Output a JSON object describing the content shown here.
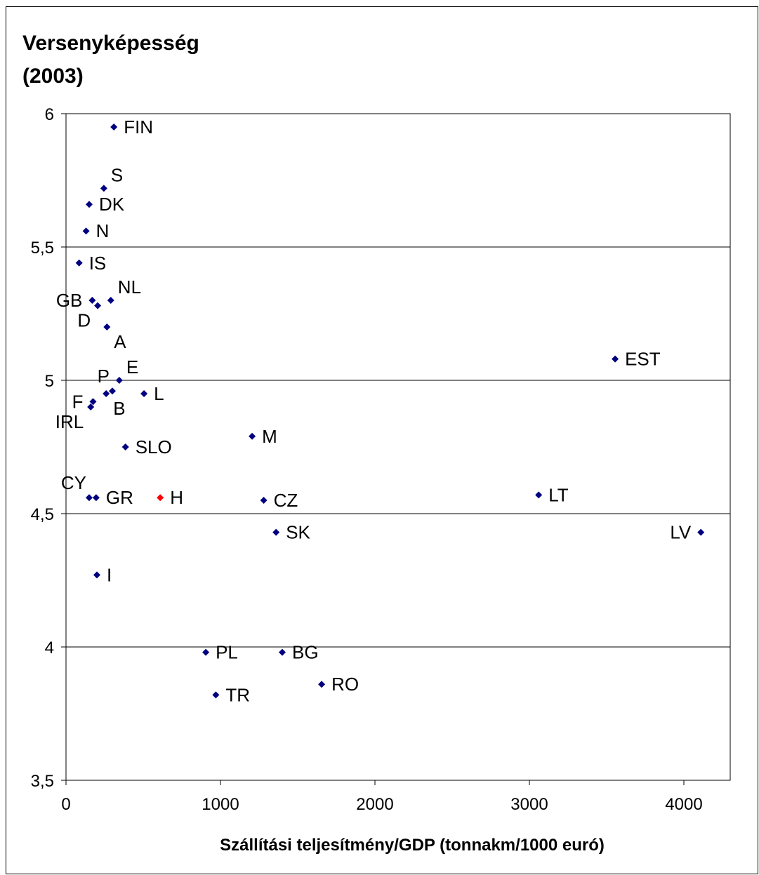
{
  "chart_data": {
    "type": "scatter",
    "title_lines": [
      "Versenyképesség",
      "(2003)"
    ],
    "xlabel": "Szállítási teljesítmény/GDP (tonnakm/1000 euró)",
    "ylabel": "",
    "xlim": [
      0,
      4300
    ],
    "ylim": [
      3.5,
      6.0
    ],
    "x_ticks": [
      0,
      1000,
      2000,
      3000,
      4000
    ],
    "x_tick_labels": [
      "0",
      "1000",
      "2000",
      "3000",
      "4000"
    ],
    "y_ticks": [
      3.5,
      4,
      4.5,
      5,
      5.5,
      6
    ],
    "y_tick_labels": [
      "3,5",
      "4",
      "4,5",
      "5",
      "5,5",
      "6"
    ],
    "grid": "horizontal",
    "legend": "none",
    "colors": {
      "marker": "#000080",
      "highlight": "#ff0000"
    },
    "points": [
      {
        "label": "FIN",
        "x": 310,
        "y": 5.95,
        "label_side": "right"
      },
      {
        "label": "S",
        "x": 245,
        "y": 5.72,
        "label_side": "above-right"
      },
      {
        "label": "DK",
        "x": 150,
        "y": 5.66,
        "label_side": "right"
      },
      {
        "label": "N",
        "x": 130,
        "y": 5.56,
        "label_side": "right"
      },
      {
        "label": "IS",
        "x": 85,
        "y": 5.44,
        "label_side": "right"
      },
      {
        "label": "GB",
        "x": 170,
        "y": 5.3,
        "label_side": "left"
      },
      {
        "label": "NL",
        "x": 290,
        "y": 5.3,
        "label_side": "above-right"
      },
      {
        "label": "D",
        "x": 205,
        "y": 5.28,
        "label_side": "below-left"
      },
      {
        "label": "A",
        "x": 265,
        "y": 5.2,
        "label_side": "below-right"
      },
      {
        "label": "EST",
        "x": 3555,
        "y": 5.08,
        "label_side": "right"
      },
      {
        "label": "E",
        "x": 345,
        "y": 5.0,
        "label_side": "above-right"
      },
      {
        "label": "P",
        "x": 300,
        "y": 4.96,
        "label_side": "above-left"
      },
      {
        "label": "L",
        "x": 505,
        "y": 4.95,
        "label_side": "right"
      },
      {
        "label": "F",
        "x": 175,
        "y": 4.92,
        "label_side": "left"
      },
      {
        "label": "B",
        "x": 260,
        "y": 4.95,
        "label_side": "below-right"
      },
      {
        "label": "IRL",
        "x": 160,
        "y": 4.9,
        "label_side": "below-left"
      },
      {
        "label": "M",
        "x": 1205,
        "y": 4.79,
        "label_side": "right"
      },
      {
        "label": "SLO",
        "x": 385,
        "y": 4.75,
        "label_side": "right"
      },
      {
        "label": "CY",
        "x": 150,
        "y": 4.56,
        "label_side": "above-left"
      },
      {
        "label": "GR",
        "x": 195,
        "y": 4.56,
        "label_side": "right"
      },
      {
        "label": "H",
        "x": 610,
        "y": 4.56,
        "label_side": "right",
        "highlight": true
      },
      {
        "label": "CZ",
        "x": 1280,
        "y": 4.55,
        "label_side": "right"
      },
      {
        "label": "LT",
        "x": 3060,
        "y": 4.57,
        "label_side": "right"
      },
      {
        "label": "SK",
        "x": 1360,
        "y": 4.43,
        "label_side": "right"
      },
      {
        "label": "LV",
        "x": 4110,
        "y": 4.43,
        "label_side": "left"
      },
      {
        "label": "I",
        "x": 200,
        "y": 4.27,
        "label_side": "right"
      },
      {
        "label": "PL",
        "x": 905,
        "y": 3.98,
        "label_side": "right"
      },
      {
        "label": "BG",
        "x": 1400,
        "y": 3.98,
        "label_side": "right"
      },
      {
        "label": "RO",
        "x": 1655,
        "y": 3.86,
        "label_side": "right"
      },
      {
        "label": "TR",
        "x": 970,
        "y": 3.82,
        "label_side": "right"
      }
    ]
  }
}
